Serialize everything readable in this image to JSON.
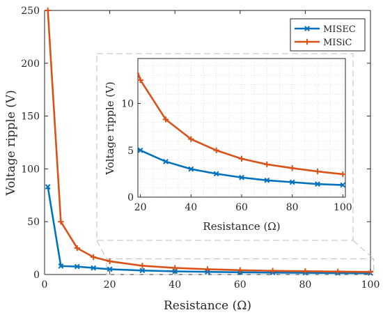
{
  "chart_data": {
    "type": "line",
    "colors": {
      "MISEC": "#0072BD",
      "MISiC": "#D95319"
    },
    "legend": {
      "position": "top-right",
      "entries": [
        "MISEC",
        "MISiC"
      ]
    },
    "main": {
      "xlabel": "Resistance (Ω)",
      "ylabel": "Voltage ripple (V)",
      "xlim": [
        0,
        100
      ],
      "ylim": [
        0,
        250
      ],
      "xticks": [
        0,
        20,
        40,
        60,
        80,
        100
      ],
      "yticks": [
        0,
        50,
        100,
        150,
        200,
        250
      ],
      "grid": false
    },
    "inset": {
      "xlabel": "Resistance (Ω)",
      "ylabel": "Voltage ripple (V)",
      "xlim": [
        19,
        101
      ],
      "ylim": [
        0,
        14.8
      ],
      "xticks": [
        20,
        40,
        60,
        80,
        100
      ],
      "yticks": [
        0,
        5,
        10
      ],
      "grid": true,
      "zoom_region": {
        "x": [
          19,
          101
        ],
        "y": [
          0,
          14.8
        ]
      }
    },
    "series": [
      {
        "name": "MISEC",
        "marker": "x",
        "x": [
          1,
          5,
          10,
          15,
          20,
          30,
          40,
          50,
          60,
          70,
          80,
          90,
          100
        ],
        "y": [
          83,
          8,
          7.5,
          6.2,
          5.0,
          3.8,
          3.0,
          2.5,
          2.1,
          1.8,
          1.6,
          1.4,
          1.3
        ]
      },
      {
        "name": "MISiC",
        "marker": "+",
        "x": [
          1,
          5,
          10,
          15,
          20,
          30,
          40,
          50,
          60,
          70,
          80,
          90,
          100
        ],
        "y": [
          250,
          50,
          25,
          16.5,
          12.5,
          8.3,
          6.2,
          5.0,
          4.1,
          3.5,
          3.1,
          2.75,
          2.45
        ]
      }
    ]
  }
}
